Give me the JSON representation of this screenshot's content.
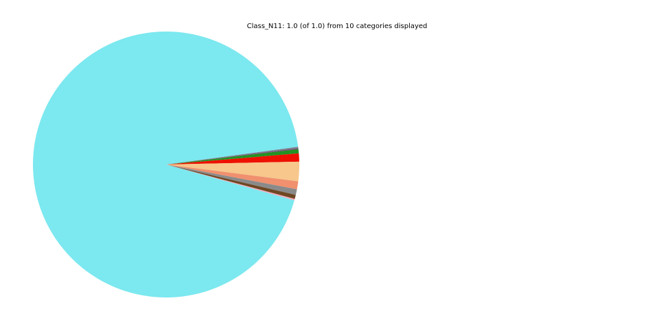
{
  "chart_data": {
    "type": "pie",
    "title": "Class_N11: 1.0 (of 1.0) from 10 categories displayed",
    "class_name": "Class_N11",
    "displayed_fraction": 1.0,
    "total_fraction": 1.0,
    "categories_displayed": 10,
    "legend": "none",
    "labels_shown": false,
    "start_angle_deg": 7.7,
    "direction": "clockwise",
    "slices": [
      {
        "name": "slice-slategray-sliver",
        "fraction": 0.002,
        "color": "#7A8491"
      },
      {
        "name": "slice-purple-sliver",
        "fraction": 0.001,
        "color": "#713D6F"
      },
      {
        "name": "slice-green",
        "fraction": 0.005,
        "color": "#229322"
      },
      {
        "name": "slice-red",
        "fraction": 0.01,
        "color": "#EE1000"
      },
      {
        "name": "slice-peach",
        "fraction": 0.0236,
        "color": "#F7C78B"
      },
      {
        "name": "slice-salmon",
        "fraction": 0.0096,
        "color": "#F0906E"
      },
      {
        "name": "slice-gray",
        "fraction": 0.0069,
        "color": "#8A8A8A"
      },
      {
        "name": "slice-brown",
        "fraction": 0.005,
        "color": "#6E4823"
      },
      {
        "name": "slice-pink",
        "fraction": 0.0017,
        "color": "#F5A8BB"
      },
      {
        "name": "slice-cyan",
        "fraction": 0.9352,
        "color": "#7CE8EF"
      }
    ]
  }
}
